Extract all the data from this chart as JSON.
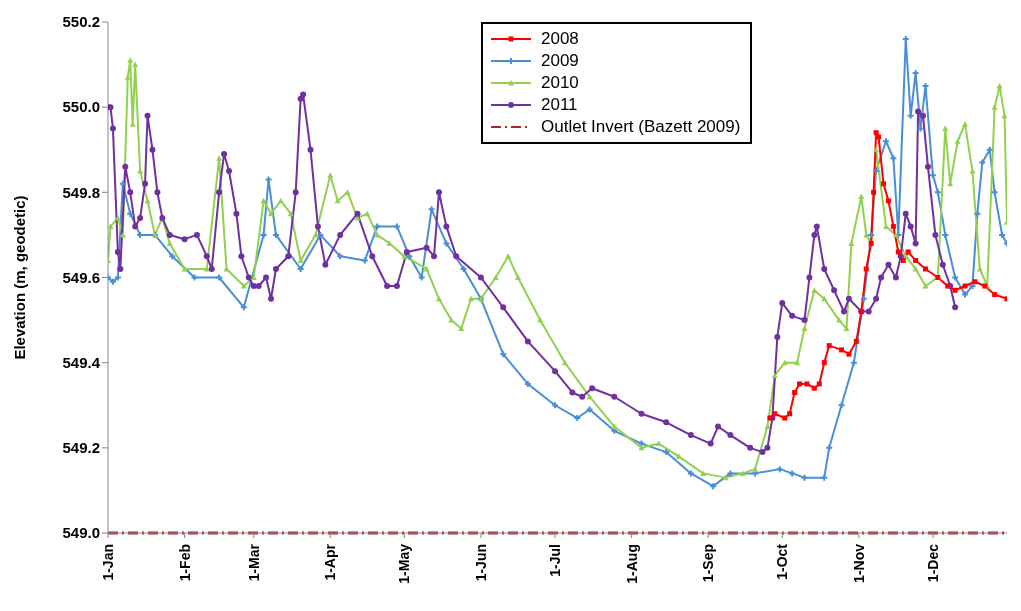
{
  "chart_data": {
    "type": "line",
    "ylabel": "Elevation (m, geodetic)",
    "xlim": [
      "--01-01",
      "--12-31"
    ],
    "xticks": [
      {
        "value": "--01-01",
        "label": "1-Jan"
      },
      {
        "value": "--02-01",
        "label": "1-Feb"
      },
      {
        "value": "--03-01",
        "label": "1-Mar"
      },
      {
        "value": "--04-01",
        "label": "1-Apr"
      },
      {
        "value": "--05-01",
        "label": "1-May"
      },
      {
        "value": "--06-01",
        "label": "1-Jun"
      },
      {
        "value": "--07-01",
        "label": "1-Jul"
      },
      {
        "value": "--08-01",
        "label": "1-Aug"
      },
      {
        "value": "--09-01",
        "label": "1-Sep"
      },
      {
        "value": "--10-01",
        "label": "1-Oct"
      },
      {
        "value": "--11-01",
        "label": "1-Nov"
      },
      {
        "value": "--12-01",
        "label": "1-Dec"
      }
    ],
    "ylim": [
      549.0,
      550.2
    ],
    "yticks": [
      {
        "value": 549,
        "label": "549.0"
      },
      {
        "value": 549.2,
        "label": "549.2"
      },
      {
        "value": 549.4,
        "label": "549.4"
      },
      {
        "value": 549.6,
        "label": "549.6"
      },
      {
        "value": 549.8,
        "label": "549.8"
      },
      {
        "value": 550,
        "label": "550.0"
      },
      {
        "value": 550.2,
        "label": "550.2"
      }
    ],
    "legend": "top",
    "series": [
      {
        "name": "2008",
        "color": "#ff0000",
        "marker": "square",
        "x": [
          "--09-26",
          "--09-28",
          "--10-02",
          "--10-04",
          "--10-06",
          "--10-08",
          "--10-11",
          "--10-14",
          "--10-16",
          "--10-18",
          "--10-20",
          "--10-25",
          "--10-28",
          "--10-31",
          "--11-02",
          "--11-04",
          "--11-06",
          "--11-07",
          "--11-08",
          "--11-09",
          "--11-11",
          "--11-13",
          "--11-15",
          "--11-17",
          "--11-19",
          "--11-21",
          "--11-24",
          "--11-28",
          "--12-03",
          "--12-07",
          "--12-10",
          "--12-14",
          "--12-18",
          "--12-22",
          "--12-26",
          "--12-31"
        ],
        "values": [
          549.27,
          549.28,
          549.27,
          549.28,
          549.33,
          549.35,
          549.35,
          549.34,
          549.35,
          549.4,
          549.44,
          549.43,
          549.42,
          549.45,
          549.52,
          549.62,
          549.68,
          549.8,
          549.94,
          549.93,
          549.82,
          549.78,
          549.72,
          549.66,
          549.64,
          549.66,
          549.64,
          549.62,
          549.6,
          549.58,
          549.57,
          549.58,
          549.59,
          549.58,
          549.56,
          549.55
        ]
      },
      {
        "name": "2009",
        "color": "#4a8fd6",
        "marker": "cross",
        "x": [
          "--01-01",
          "--01-03",
          "--01-05",
          "--01-07",
          "--01-10",
          "--01-14",
          "--01-20",
          "--01-27",
          "--02-05",
          "--02-15",
          "--02-25",
          "--03-05",
          "--03-07",
          "--03-10",
          "--03-20",
          "--03-28",
          "--04-05",
          "--04-15",
          "--04-20",
          "--04-28",
          "--05-03",
          "--05-08",
          "--05-12",
          "--05-18",
          "--05-25",
          "--06-01",
          "--06-10",
          "--06-20",
          "--07-01",
          "--07-10",
          "--07-15",
          "--07-25",
          "--08-05",
          "--08-15",
          "--08-25",
          "--09-03",
          "--09-10",
          "--09-20",
          "--09-30",
          "--10-05",
          "--10-10",
          "--10-18",
          "--10-20",
          "--10-25",
          "--10-30",
          "--11-03",
          "--11-06",
          "--11-08",
          "--11-12",
          "--11-15",
          "--11-17",
          "--11-20",
          "--11-22",
          "--11-24",
          "--11-26",
          "--11-28",
          "--12-01",
          "--12-03",
          "--12-06",
          "--12-10",
          "--12-14",
          "--12-17",
          "--12-19",
          "--12-21",
          "--12-24",
          "--12-26",
          "--12-29",
          "--12-31"
        ],
        "values": [
          549.6,
          549.59,
          549.6,
          549.82,
          549.75,
          549.7,
          549.7,
          549.65,
          549.6,
          549.6,
          549.53,
          549.7,
          549.83,
          549.7,
          549.62,
          549.7,
          549.65,
          549.64,
          549.72,
          549.72,
          549.65,
          549.6,
          549.76,
          549.68,
          549.62,
          549.55,
          549.42,
          549.35,
          549.3,
          549.27,
          549.29,
          549.24,
          549.21,
          549.19,
          549.14,
          549.11,
          549.14,
          549.14,
          549.15,
          549.14,
          549.13,
          549.13,
          549.2,
          549.3,
          549.4,
          549.55,
          549.7,
          549.85,
          549.92,
          549.88,
          549.7,
          550.16,
          549.98,
          550.08,
          549.95,
          550.05,
          549.84,
          549.8,
          549.7,
          549.6,
          549.56,
          549.58,
          549.75,
          549.87,
          549.9,
          549.8,
          549.7,
          549.68
        ]
      },
      {
        "name": "2010",
        "color": "#92d050",
        "marker": "triangle",
        "x": [
          "--01-01",
          "--01-02",
          "--01-05",
          "--01-07",
          "--01-09",
          "--01-10",
          "--01-11",
          "--01-12",
          "--01-14",
          "--01-17",
          "--01-20",
          "--01-23",
          "--01-26",
          "--02-01",
          "--02-10",
          "--02-15",
          "--02-18",
          "--02-25",
          "--03-01",
          "--03-05",
          "--03-08",
          "--03-12",
          "--03-16",
          "--03-20",
          "--03-26",
          "--04-01",
          "--04-04",
          "--04-08",
          "--04-12",
          "--04-16",
          "--04-20",
          "--04-25",
          "--05-01",
          "--05-10",
          "--05-15",
          "--05-20",
          "--05-24",
          "--05-28",
          "--06-01",
          "--06-07",
          "--06-12",
          "--06-16",
          "--06-25",
          "--07-05",
          "--07-15",
          "--07-25",
          "--08-05",
          "--08-12",
          "--08-20",
          "--08-30",
          "--09-08",
          "--09-15",
          "--09-20",
          "--09-25",
          "--09-28",
          "--10-02",
          "--10-07",
          "--10-10",
          "--10-14",
          "--10-18",
          "--10-24",
          "--10-27",
          "--10-29",
          "--11-02",
          "--11-04",
          "--11-06",
          "--11-08",
          "--11-12",
          "--11-16",
          "--11-20",
          "--11-24",
          "--11-28",
          "--12-03",
          "--12-06",
          "--12-08",
          "--12-11",
          "--12-14",
          "--12-17",
          "--12-20",
          "--12-23",
          "--12-26",
          "--12-28",
          "--12-30",
          "--12-31"
        ],
        "values": [
          549.64,
          549.72,
          549.74,
          549.7,
          550.07,
          550.11,
          549.96,
          550.1,
          549.85,
          549.78,
          549.7,
          549.74,
          549.68,
          549.62,
          549.62,
          549.88,
          549.62,
          549.58,
          549.6,
          549.78,
          549.75,
          549.78,
          549.75,
          549.64,
          549.7,
          549.84,
          549.78,
          549.8,
          549.74,
          549.75,
          549.7,
          549.68,
          549.65,
          549.62,
          549.55,
          549.5,
          549.48,
          549.55,
          549.55,
          549.6,
          549.65,
          549.6,
          549.5,
          549.4,
          549.32,
          549.25,
          549.2,
          549.21,
          549.18,
          549.14,
          549.13,
          549.14,
          549.15,
          549.25,
          549.37,
          549.4,
          549.4,
          549.48,
          549.57,
          549.55,
          549.5,
          549.48,
          549.68,
          549.79,
          549.7,
          549.68,
          549.9,
          549.72,
          549.7,
          549.65,
          549.62,
          549.58,
          549.6,
          549.95,
          549.82,
          549.92,
          549.96,
          549.85,
          549.62,
          549.58,
          550.0,
          550.05,
          549.98,
          549.73
        ]
      },
      {
        "name": "2011",
        "color": "#7030a0",
        "marker": "circle",
        "x": [
          "--01-01",
          "--01-02",
          "--01-03",
          "--01-05",
          "--01-06",
          "--01-08",
          "--01-10",
          "--01-12",
          "--01-14",
          "--01-16",
          "--01-17",
          "--01-19",
          "--01-21",
          "--01-23",
          "--01-26",
          "--02-01",
          "--02-06",
          "--02-10",
          "--02-12",
          "--02-15",
          "--02-17",
          "--02-19",
          "--02-22",
          "--02-24",
          "--02-27",
          "--03-01",
          "--03-03",
          "--03-06",
          "--03-08",
          "--03-10",
          "--03-15",
          "--03-18",
          "--03-20",
          "--03-21",
          "--03-24",
          "--03-27",
          "--03-30",
          "--04-05",
          "--04-12",
          "--04-18",
          "--04-24",
          "--04-28",
          "--05-02",
          "--05-10",
          "--05-13",
          "--05-15",
          "--05-18",
          "--05-22",
          "--06-01",
          "--06-10",
          "--06-20",
          "--07-01",
          "--07-08",
          "--07-12",
          "--07-16",
          "--07-25",
          "--08-05",
          "--08-15",
          "--08-25",
          "--09-02",
          "--09-05",
          "--09-10",
          "--09-18",
          "--09-23",
          "--09-25",
          "--09-27",
          "--09-29",
          "--10-01",
          "--10-05",
          "--10-10",
          "--10-12",
          "--10-14",
          "--10-15",
          "--10-18",
          "--10-22",
          "--10-26",
          "--10-28",
          "--11-02",
          "--11-05",
          "--11-08",
          "--11-10",
          "--11-13",
          "--11-16",
          "--11-18",
          "--11-20",
          "--11-22",
          "--11-24",
          "--11-25",
          "--11-27",
          "--11-29",
          "--12-02",
          "--12-05",
          "--12-08",
          "--12-10"
        ],
        "values": [
          550.0,
          550.0,
          549.95,
          549.66,
          549.62,
          549.86,
          549.8,
          549.72,
          549.74,
          549.82,
          549.98,
          549.9,
          549.8,
          549.74,
          549.7,
          549.69,
          549.7,
          549.65,
          549.62,
          549.8,
          549.89,
          549.85,
          549.75,
          549.65,
          549.6,
          549.58,
          549.58,
          549.6,
          549.55,
          549.62,
          549.65,
          549.8,
          550.02,
          550.03,
          549.9,
          549.72,
          549.63,
          549.7,
          549.75,
          549.65,
          549.58,
          549.58,
          549.66,
          549.67,
          549.65,
          549.8,
          549.72,
          549.65,
          549.6,
          549.53,
          549.45,
          549.38,
          549.33,
          549.32,
          549.34,
          549.32,
          549.28,
          549.26,
          549.23,
          549.21,
          549.25,
          549.23,
          549.2,
          549.19,
          549.2,
          549.27,
          549.46,
          549.54,
          549.51,
          549.5,
          549.6,
          549.7,
          549.72,
          549.62,
          549.57,
          549.52,
          549.55,
          549.52,
          549.52,
          549.55,
          549.6,
          549.63,
          549.6,
          549.65,
          549.75,
          549.72,
          549.68,
          549.99,
          549.98,
          549.86,
          549.7,
          549.63,
          549.58,
          549.53
        ]
      }
    ],
    "ref_lines": [
      {
        "axis": "y",
        "value": 549.0,
        "label": "Outlet Invert (Bazett 2009)",
        "color": "#a52a2a",
        "line_style": "dashdot"
      }
    ]
  }
}
